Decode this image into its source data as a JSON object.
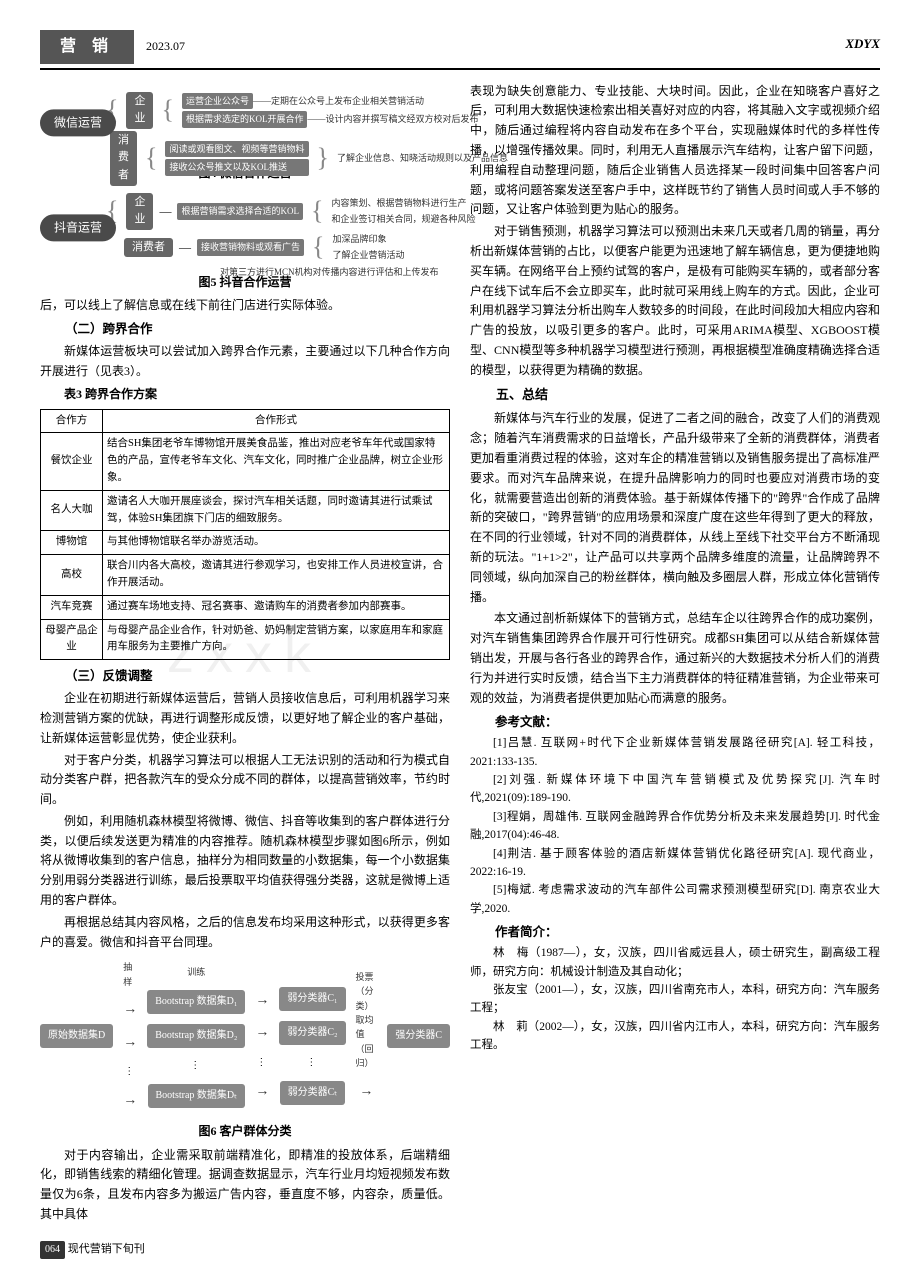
{
  "header": {
    "section": "营 销",
    "date": "2023.07",
    "right": "XDYX"
  },
  "figs": {
    "f4": {
      "root": "微信运营",
      "n1": "企业",
      "n2": "消费者",
      "leaf1a": "运营企业公众号",
      "leaf1a_note1": "——定期在公众号上发布企业相关营销活动",
      "leaf1b": "根据需求选定的KOL开展合作",
      "leaf1b_note": "——设计内容并撰写稿文经双方校对后发布",
      "leaf2a": "阅读或观看图文、视频等营销物料",
      "leaf2b": "接收公众号推文以及KOL推送",
      "right_note": "了解企业信息、知晓活动规则以及产品信息",
      "caption": "图4  微信合作运营"
    },
    "f5": {
      "root": "抖音运营",
      "n1": "企业",
      "n2": "消费者",
      "leaf1a": "根据营销需求选择合适的KOL",
      "leaf1a_note1": "内容策划、根据营销物料进行生产",
      "leaf1a_note2": "和企业签订相关合同，规避各种风险",
      "leaf2a": "接收营销物料或观看广告",
      "leaf2a_note1": "加深品牌印象",
      "leaf2a_note2": "了解企业营销活动",
      "leaf2b_note": "对第三方进行MCN机构对传播内容进行评估和上传发布",
      "caption": "图5  抖音合作运营"
    },
    "f6": {
      "src": "原始数据集D",
      "sample": "抽样",
      "train": "训练",
      "b1": "Bootstrap 数据集D₁",
      "b2": "Bootstrap 数据集D₂",
      "bt": "Bootstrap 数据集Dₜ",
      "c1": "弱分类器C₁",
      "c2": "弱分类器C₂",
      "ct": "弱分类器Cₜ",
      "vote": "投票（分类）\n取均值（回归）",
      "strong": "强分类器C",
      "caption": "图6  客户群体分类"
    }
  },
  "left": {
    "p_after_fig5": "后，可以线上了解信息或在线下前往门店进行实际体验。",
    "h2": "（二）跨界合作",
    "p2": "新媒体运营板块可以尝试加入跨界合作元素，主要通过以下几种合作方向开展进行（见表3）。",
    "tbl3_title": "表3  跨界合作方案",
    "tbl3": {
      "head": [
        "合作方",
        "合作形式"
      ],
      "rows": [
        [
          "餐饮企业",
          "结合SH集团老爷车博物馆开展美食品鉴，推出对应老爷车年代或国家特色的产品，宣传老爷车文化、汽车文化，同时推广企业品牌，树立企业形象。"
        ],
        [
          "名人大咖",
          "邀请名人大咖开展座谈会，探讨汽车相关话题，同时邀请其进行试乘试驾，体验SH集团旗下门店的细致服务。"
        ],
        [
          "博物馆",
          "与其他博物馆联名举办游览活动。"
        ],
        [
          "高校",
          "联合川内各大高校，邀请其进行参观学习，也安排工作人员进校宣讲，合作开展活动。"
        ],
        [
          "汽车竞赛",
          "通过赛车场地支持、冠名赛事、邀请购车的消费者参加内部赛事。"
        ],
        [
          "母婴产品企业",
          "与母婴产品企业合作，针对奶爸、奶妈制定营销方案，以家庭用车和家庭用车服务为主要推广方向。"
        ]
      ]
    },
    "h3": "（三）反馈调整",
    "p3a": "企业在初期进行新媒体运营后，营销人员接收信息后，可利用机器学习来检测营销方案的优缺，再进行调整形成反馈，以更好地了解企业的客户基础，让新媒体运营彰显优势，使企业获利。",
    "p3b": "对于客户分类，机器学习算法可以根据人工无法识别的活动和行为模式自动分类客户群，把各款汽车的受众分成不同的群体，以提高营销效率，节约时间。",
    "p3c": "例如，利用随机森林模型将微博、微信、抖音等收集到的客户群体进行分类，以便后续发送更为精准的内容推荐。随机森林模型步骤如图6所示，例如将从微博收集到的客户信息，抽样分为相同数量的小数据集，每一个小数据集分别用弱分类器进行训练，最后投票取平均值获得强分类器，这就是微博上适用的客户群体。",
    "p3d": "再根据总结其内容风格，之后的信息发布均采用这种形式，以获得更多客户的喜爱。微信和抖音平台同理。",
    "p_tail": "对于内容输出，企业需采取前端精准化，即精准的投放体系，后端精细化，即销售线索的精细化管理。据调查数据显示，汽车行业月均短视频发布数量仅为6条，且发布内容多为搬运广告内容，垂直度不够，内容杂，质量低。其中具体"
  },
  "right": {
    "p1": "表现为缺失创意能力、专业技能、大块时间。因此，企业在知晓客户喜好之后，可利用大数据快速检索出相关喜好对应的内容，将其融入文字或视频介绍中，随后通过编程将内容自动发布在多个平台，实现融媒体时代的多样性传播，以增强传播效果。同时，利用无人直播展示汽车结构，让客户留下问题，利用编程自动整理问题，随后企业销售人员选择某一段时间集中回答客户问题，或将问题答案发送至客户手中，这样既节约了销售人员时间或人手不够的问题，又让客户体验到更为贴心的服务。",
    "p2": "对于销售预测，机器学习算法可以预测出未来几天或者几周的销量，再分析出新媒体营销的占比，以便客户能更为迅速地了解车辆信息，更为便捷地购买车辆。在网络平台上预约试驾的客户，是极有可能购买车辆的，或者部分客户在线下试车后不会立即买车，此时就可采用线上购车的方式。因此，企业可利用机器学习算法分析出购车人数较多的时间段，在此时间段加大相应内容和广告的投放，以吸引更多的客户。此时，可采用ARIMA模型、XGBOOST模型、CNN模型等多种机器学习模型进行预测，再根据模型准确度精确选择合适的模型，以获得更为精确的数据。",
    "h5": "五、总结",
    "p3": "新媒体与汽车行业的发展，促进了二者之间的融合，改变了人们的消费观念；随着汽车消费需求的日益增长，产品升级带来了全新的消费群体，消费者更加看重消费过程的体验，这对车企的精准营销以及销售服务提出了高标准严要求。而对汽车品牌来说，在提升品牌影响力的同时也要应对消费市场的变化，就需要营造出创新的消费体验。基于新媒体传播下的\"跨界\"合作成了品牌新的突破口，\"跨界营销\"的应用场景和深度广度在这些年得到了更大的释放，在不同的行业领域，针对不同的消费群体，从线上至线下社交平台方不断涌现新的玩法。\"1+1>2\"，让产品可以共享两个品牌多维度的流量，让品牌跨界不同领域，纵向加深自己的粉丝群体，横向触及多圈层人群，形成立体化营销传播。",
    "p4": "本文通过剖析新媒体下的营销方式，总结车企以往跨界合作的成功案例，对汽车销售集团跨界合作展开可行性研究。成都SH集团可以从结合新媒体营销出发，开展与各行各业的跨界合作，通过新兴的大数据技术分析人们的消费行为并进行实时反馈，结合当下主力消费群体的特征精准营销，为企业带来可观的效益，为消费者提供更加贴心而满意的服务。",
    "refs_title": "参考文献：",
    "refs": [
      "[1]吕慧. 互联网+时代下企业新媒体营销发展路径研究[A]. 轻工科技，2021:133-135.",
      "[2]刘强. 新媒体环境下中国汽车营销模式及优势探究[J]. 汽车时代,2021(09):189-190.",
      "[3]程娟，周雄伟. 互联网金融跨界合作优势分析及未来发展趋势[J]. 时代金融,2017(04):46-48.",
      "[4]荆洁. 基于顾客体验的酒店新媒体营销优化路径研究[A]. 现代商业，2022:16-19.",
      "[5]梅斌. 考虑需求波动的汽车部件公司需求预测模型研究[D]. 南京农业大学,2020."
    ],
    "authors_title": "作者简介：",
    "authors": [
      "林　梅（1987—），女，汉族，四川省威远县人，硕士研究生，副高级工程师，研究方向：机械设计制造及其自动化；",
      "张友宝（2001—），女，汉族，四川省南充市人，本科，研究方向：汽车服务工程；",
      "林　莉（2002—），女，汉族，四川省内江市人，本科，研究方向：汽车服务工程。"
    ]
  },
  "footer": {
    "page": "064",
    "journal": "现代营销下旬刊"
  },
  "watermark": "zxxk"
}
